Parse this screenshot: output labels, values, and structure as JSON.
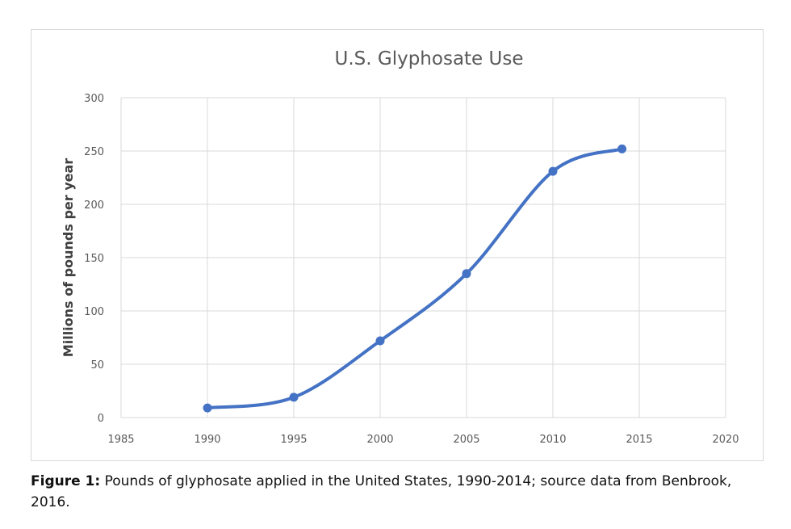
{
  "chart_data": {
    "type": "scatter",
    "title": "U.S. Glyphosate Use",
    "xlabel": "",
    "ylabel": "Millions of pounds per year",
    "xlim": [
      1985,
      2020
    ],
    "ylim": [
      0,
      300
    ],
    "xticks": [
      1985,
      1990,
      1995,
      2000,
      2005,
      2010,
      2015,
      2020
    ],
    "yticks": [
      0,
      50,
      100,
      150,
      200,
      250,
      300
    ],
    "grid": true,
    "legend": "none",
    "smoothed_line": true,
    "series": [
      {
        "x": [
          1990,
          1995,
          2000,
          2005,
          2010,
          2014
        ],
        "y": [
          9,
          19,
          72,
          135,
          231,
          252
        ]
      }
    ]
  },
  "colors": {
    "series": "#4472c4",
    "grid": "#d9d9d9",
    "tick_text": "#595959",
    "title_text": "#595959",
    "ylabel_text": "#404040"
  },
  "caption": {
    "label": "Figure 1:",
    "text": " Pounds of glyphosate applied in the United States, 1990-2014; source data from Benbrook, 2016."
  }
}
